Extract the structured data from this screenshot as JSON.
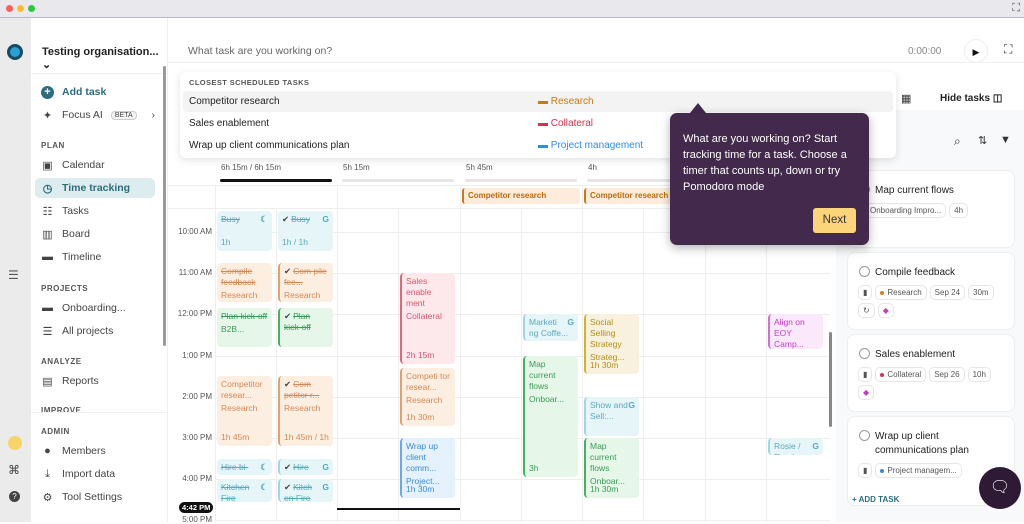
{
  "colors": {
    "accent": "#2b6d7c",
    "tooltip_bg": "#432a4c",
    "next_bg": "#fcd47a",
    "research": "#c97a14",
    "collateral": "#d92f4b",
    "project": "#2f8de0"
  },
  "window": {
    "close": "#ff5f57",
    "min": "#febc2e",
    "max": "#28c840"
  },
  "sidebar": {
    "org": "Testing organisation...",
    "add_task": "Add task",
    "focus_ai": "Focus AI",
    "beta": "BETA",
    "plan_label": "PLAN",
    "plan": [
      {
        "label": "Calendar",
        "icon": "calendar-icon"
      },
      {
        "label": "Time tracking",
        "icon": "clock-icon",
        "selected": true
      },
      {
        "label": "Tasks",
        "icon": "tasks-icon"
      },
      {
        "label": "Board",
        "icon": "board-icon"
      },
      {
        "label": "Timeline",
        "icon": "timeline-icon"
      }
    ],
    "projects_label": "PROJECTS",
    "projects": [
      {
        "label": "Onboarding...",
        "icon": "folder-icon"
      },
      {
        "label": "All projects",
        "icon": "list-icon"
      }
    ],
    "analyze_label": "ANALYZE",
    "analyze": [
      {
        "label": "Reports",
        "icon": "reports-icon"
      }
    ],
    "improve_label": "IMPROVE",
    "admin_label": "ADMIN",
    "admin": [
      {
        "label": "Members",
        "icon": "user-icon"
      },
      {
        "label": "Import data",
        "icon": "import-icon"
      },
      {
        "label": "Tool Settings",
        "icon": "gear-icon"
      }
    ]
  },
  "timer": {
    "placeholder": "What task are you working on?",
    "time": "0:00:00"
  },
  "dropdown": {
    "heading": "CLOSEST SCHEDULED TASKS",
    "items": [
      {
        "task": "Competitor research",
        "project": "Research",
        "color": "#c97a14"
      },
      {
        "task": "Sales enablement",
        "project": "Collateral",
        "color": "#d92f4b"
      },
      {
        "task": "Wrap up client communications plan",
        "project": "Project management",
        "color": "#2f8de0"
      }
    ]
  },
  "tooltip": {
    "text": "What are you working on? Start tracking time for a task. Choose a timer that counts up, down or try Pomodoro mode",
    "next": "Next"
  },
  "toolbar": {
    "hide_tasks": "Hide tasks"
  },
  "calendar": {
    "day_totals": [
      "6h 15m / 6h 15m",
      "5h 15m",
      "5h 45m",
      "4h",
      ""
    ],
    "day_progress": [
      1,
      0,
      0,
      0,
      0
    ],
    "hours": [
      "10:00 AM",
      "11:00 AM",
      "12:00 PM",
      "1:00 PM",
      "2:00 PM",
      "3:00 PM",
      "4:00 PM",
      "5:00 PM"
    ],
    "now": "4:42 PM",
    "all_day": [
      {
        "day": 2,
        "title": "Competitor research"
      },
      {
        "day": 3,
        "title": "Competitor research"
      }
    ],
    "events": [
      {
        "day": 0,
        "lane": 0,
        "start": 9.5,
        "end": 10.5,
        "title": "Busy",
        "sub": "",
        "dur": "1h",
        "color": "teal",
        "strike": true,
        "icon": "sync-icon"
      },
      {
        "day": 0,
        "lane": 0,
        "start": 10.75,
        "end": 11.75,
        "title": "Compile feedback",
        "sub": "Research",
        "dur": "",
        "color": "orange",
        "strike": true
      },
      {
        "day": 0,
        "lane": 0,
        "start": 11.85,
        "end": 12.85,
        "title": "Plan kick-off",
        "sub": "B2B...",
        "dur": "",
        "color": "green",
        "strike": true
      },
      {
        "day": 0,
        "lane": 0,
        "start": 13.5,
        "end": 15.25,
        "title": "Competitor resear...",
        "sub": "Research",
        "dur": "1h 45m",
        "color": "orange"
      },
      {
        "day": 0,
        "lane": 0,
        "start": 15.5,
        "end": 15.95,
        "title": "Hire bi-weekly",
        "sub": "",
        "dur": "",
        "color": "teal",
        "strike": true,
        "icon": "sync-icon"
      },
      {
        "day": 0,
        "lane": 0,
        "start": 16,
        "end": 16.6,
        "title": "Kitchen Fire",
        "sub": "",
        "dur": "",
        "color": "teal",
        "strike": true,
        "icon": "sync-icon"
      },
      {
        "day": 0,
        "lane": 1,
        "start": 9.5,
        "end": 10.5,
        "title": "Busy",
        "sub": "",
        "dur": "1h / 1h",
        "color": "teal",
        "strike": true,
        "done": true,
        "icon": "google-icon"
      },
      {
        "day": 0,
        "lane": 1,
        "start": 10.75,
        "end": 11.75,
        "title": "Com pile fee...",
        "sub": "Research",
        "dur": "",
        "color": "orange",
        "strike": true,
        "done": true,
        "bar": true
      },
      {
        "day": 0,
        "lane": 1,
        "start": 11.85,
        "end": 12.85,
        "title": "Plan kick-off",
        "sub": "",
        "dur": "",
        "color": "green",
        "strike": true,
        "done": true,
        "bar": true
      },
      {
        "day": 0,
        "lane": 1,
        "start": 13.5,
        "end": 15.25,
        "title": "Com petitor r...",
        "sub": "Research",
        "dur": "1h 45m / 1h",
        "color": "orange",
        "strike": true,
        "done": true,
        "bar": true
      },
      {
        "day": 0,
        "lane": 1,
        "start": 15.5,
        "end": 15.95,
        "title": "Hire bi...",
        "sub": "",
        "dur": "",
        "color": "teal",
        "strike": true,
        "done": true,
        "icon": "google-icon",
        "bar": true
      },
      {
        "day": 0,
        "lane": 1,
        "start": 16,
        "end": 16.6,
        "title": "Kitch en Fire",
        "sub": "",
        "dur": "",
        "color": "teal",
        "strike": true,
        "done": true,
        "icon": "google-icon",
        "bar": true
      },
      {
        "day": 1,
        "lane": 1,
        "start": 11,
        "end": 13.25,
        "title": "Sales enable ment",
        "sub": "Collateral",
        "dur": "2h 15m",
        "color": "red",
        "bar": true
      },
      {
        "day": 1,
        "lane": 1,
        "start": 13.3,
        "end": 14.75,
        "title": "Competi tor resear...",
        "sub": "Research",
        "dur": "1h 30m",
        "color": "orange",
        "bar": true
      },
      {
        "day": 1,
        "lane": 1,
        "start": 15,
        "end": 16.5,
        "title": "Wrap up client comm...",
        "sub": "Project...",
        "dur": "1h 30m",
        "color": "blue",
        "bar": true
      },
      {
        "day": 2,
        "lane": 1,
        "start": 12,
        "end": 12.7,
        "title": "Marketi ng Coffe...",
        "sub": "",
        "dur": "",
        "color": "teal",
        "icon": "google-icon",
        "bar": true
      },
      {
        "day": 2,
        "lane": 1,
        "start": 13,
        "end": 16,
        "title": "Map current flows",
        "sub": "Onboar...",
        "dur": "3h",
        "color": "green",
        "bar": true
      },
      {
        "day": 3,
        "lane": 0,
        "start": 12,
        "end": 13.5,
        "title": "Social Selling Strategy",
        "sub": "Strateg...",
        "dur": "1h 30m",
        "color": "yellow",
        "bar": true
      },
      {
        "day": 3,
        "lane": 0,
        "start": 14,
        "end": 15,
        "title": "Show and Sell:...",
        "sub": "",
        "dur": "",
        "color": "teal",
        "icon": "google-icon",
        "bar": true
      },
      {
        "day": 3,
        "lane": 0,
        "start": 15,
        "end": 16.5,
        "title": "Map current flows",
        "sub": "Onboar...",
        "dur": "1h 30m",
        "color": "green",
        "bar": true
      },
      {
        "day": 4,
        "lane": 1,
        "start": 12,
        "end": 12.9,
        "title": "Align on EOY Camp...",
        "sub": "",
        "dur": "",
        "color": "pink",
        "bar": true
      },
      {
        "day": 4,
        "lane": 1,
        "start": 15,
        "end": 15.45,
        "title": "Rosie / Rumi",
        "sub": "",
        "dur": "",
        "color": "teal",
        "icon": "google-icon",
        "bar": true
      }
    ]
  },
  "tasks": {
    "add_task": "ADD TASK",
    "cards": [
      {
        "title": "Map current flows",
        "chips": [
          {
            "text": "Onboarding Impro...",
            "dot": "#22a04b"
          },
          {
            "text": "4h"
          }
        ]
      },
      {
        "title": "Compile feedback",
        "chips": [
          {
            "text": "",
            "icon": "priority-icon"
          },
          {
            "text": "Research",
            "dot": "#d5820f"
          },
          {
            "text": "Sep 24"
          },
          {
            "text": "30m"
          },
          {
            "text": "",
            "icon": "repeat-icon"
          },
          {
            "text": "",
            "icon": "tag-icon"
          }
        ]
      },
      {
        "title": "Sales enablement",
        "chips": [
          {
            "text": "",
            "icon": "priority-icon"
          },
          {
            "text": "Collateral",
            "dot": "#d92f4b"
          },
          {
            "text": "Sep 26"
          },
          {
            "text": "10h"
          },
          {
            "text": "",
            "icon": "tag-icon"
          }
        ]
      },
      {
        "title": "Wrap up client communications plan",
        "chips": [
          {
            "text": "",
            "icon": "priority-icon"
          },
          {
            "text": "Project managem...",
            "dot": "#2f8de0"
          }
        ]
      }
    ]
  }
}
